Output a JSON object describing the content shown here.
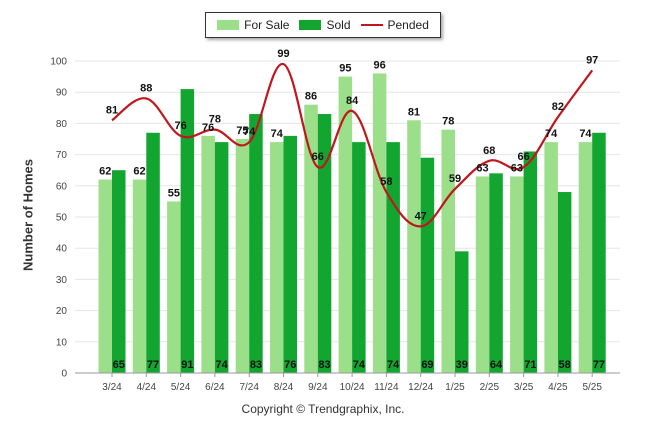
{
  "chart_data": {
    "type": "bar",
    "categories": [
      "3/24",
      "4/24",
      "5/24",
      "6/24",
      "7/24",
      "8/24",
      "9/24",
      "10/24",
      "11/24",
      "12/24",
      "1/25",
      "2/25",
      "3/25",
      "4/25",
      "5/25"
    ],
    "series": [
      {
        "name": "For Sale",
        "kind": "bar",
        "color": "#9bdf8a",
        "values": [
          62,
          62,
          55,
          76,
          75,
          74,
          86,
          95,
          96,
          81,
          78,
          63,
          63,
          74,
          74
        ]
      },
      {
        "name": "Sold",
        "kind": "bar",
        "color": "#12a630",
        "values": [
          65,
          77,
          91,
          74,
          83,
          76,
          83,
          74,
          74,
          69,
          39,
          64,
          71,
          58,
          77
        ]
      },
      {
        "name": "Pended",
        "kind": "line",
        "color": "#c0171d",
        "values": [
          81,
          88,
          76,
          78,
          74,
          99,
          66,
          84,
          58,
          47,
          59,
          68,
          66,
          82,
          97
        ]
      }
    ],
    "ylabel": "Number of Homes",
    "ylim": [
      0,
      100
    ],
    "yticks": [
      0,
      10,
      20,
      30,
      40,
      50,
      60,
      70,
      80,
      90,
      100
    ],
    "grid": true,
    "legend_position": "top-center"
  },
  "legend": {
    "for_sale": "For Sale",
    "sold": "Sold",
    "pended": "Pended"
  },
  "footer": "Copyright © Trendgraphix, Inc."
}
